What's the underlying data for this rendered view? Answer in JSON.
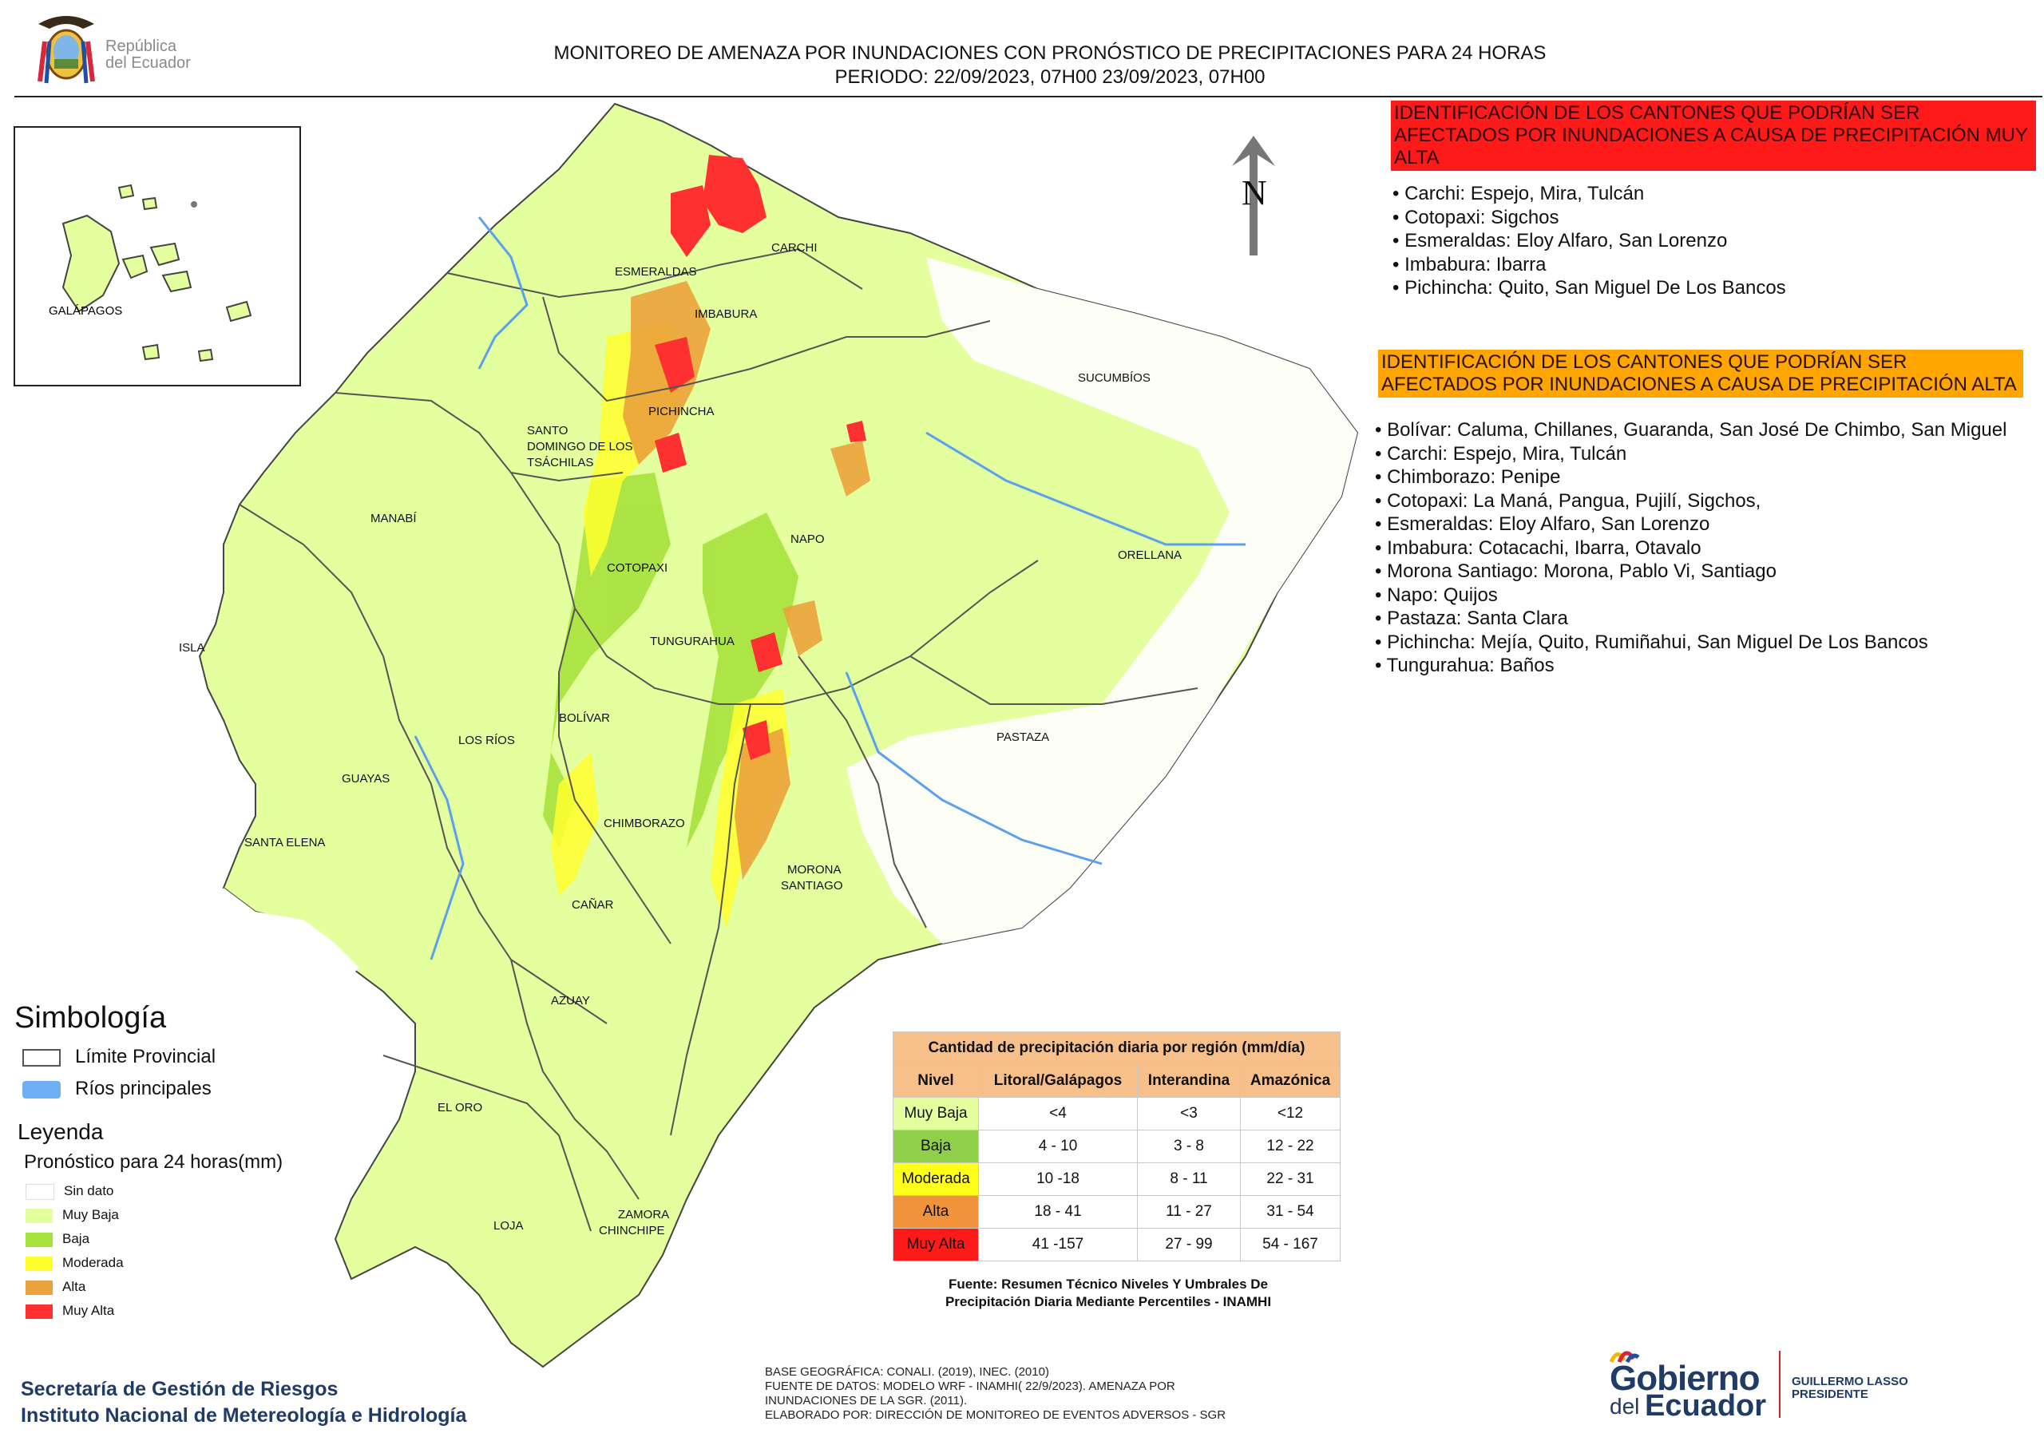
{
  "header": {
    "logo_line1": "República",
    "logo_line2": "del Ecuador",
    "title_line1": "MONITOREO DE AMENAZA POR INUNDACIONES  CON PRONÓSTICO DE  PRECIPITACIONES PARA 24 HORAS",
    "title_line2": "PERIODO: 22/09/2023, 07H00 23/09/2023, 07H00"
  },
  "north_label": "N",
  "map_labels": {
    "galapagos": "GALÁPAGOS",
    "esmeraldas": "ESMERALDAS",
    "carchi": "CARCHI",
    "imbabura": "IMBABURA",
    "sucumbios": "SUCUMBÍOS",
    "pichincha": "PICHINCHA",
    "santo1": "SANTO",
    "santo2": "DOMINGO DE LOS",
    "santo3": "TSÁCHILAS",
    "manabi": "MANABÍ",
    "napo": "NAPO",
    "orellana": "ORELLANA",
    "cotopaxi": "COTOPAXI",
    "tungurahua": "TUNGURAHUA",
    "isla": "ISLA",
    "bolivar": "BOLÍVAR",
    "pastaza": "PASTAZA",
    "losrios": "LOS RÍOS",
    "guayas": "GUAYAS",
    "chimborazo": "CHIMBORAZO",
    "santaelena": "SANTA ELENA",
    "morona1": "MORONA",
    "morona2": "SANTIAGO",
    "canar": "CAÑAR",
    "azuay": "AZUAY",
    "eloro": "EL ORO",
    "loja": "LOJA",
    "zamora1": "ZAMORA",
    "zamora2": "CHINCHIPE"
  },
  "muy_alta": {
    "header": "IDENTIFICACIÓN DE LOS CANTONES QUE PODRÍAN SER AFECTADOS POR INUNDACIONES  A CAUSA DE PRECIPITACIÓN MUY ALTA",
    "items": [
      "• Carchi: Espejo, Mira, Tulcán",
      "• Cotopaxi: Sigchos",
      "• Esmeraldas: Eloy Alfaro, San Lorenzo",
      "• Imbabura: Ibarra",
      "• Pichincha: Quito, San Miguel De Los Bancos"
    ]
  },
  "alta": {
    "header": "IDENTIFICACIÓN DE LOS CANTONES QUE  PODRÍAN SER AFECTADOS POR INUNDACIONES  A CAUSA DE PRECIPITACIÓN ALTA",
    "items": [
      "• Bolívar: Caluma, Chillanes, Guaranda, San José De Chimbo, San Miguel",
      "• Carchi: Espejo, Mira, Tulcán",
      "• Chimborazo: Penipe",
      "• Cotopaxi: La Maná, Pangua, Pujilí, Sigchos,",
      "• Esmeraldas: Eloy Alfaro, San Lorenzo",
      "• Imbabura: Cotacachi, Ibarra, Otavalo",
      "• Morona Santiago: Morona, Pablo Vi, Santiago",
      "• Napo: Quijos",
      "• Pastaza: Santa Clara",
      "• Pichincha: Mejía, Quito, Rumiñahui, San Miguel De Los Bancos",
      "• Tungurahua: Baños"
    ]
  },
  "simbologia": {
    "title": "Simbología",
    "limite": "Límite Provincial",
    "rios": "Ríos principales"
  },
  "leyenda": {
    "title": "Leyenda",
    "subtitle": "Pronóstico para 24 horas(mm)",
    "items": [
      {
        "label": "Sin dato",
        "color": "#ffffff"
      },
      {
        "label": "Muy Baja",
        "color": "#e4ff9e"
      },
      {
        "label": "Baja",
        "color": "#a6e23c"
      },
      {
        "label": "Moderada",
        "color": "#ffff2e"
      },
      {
        "label": "Alta",
        "color": "#eba23b"
      },
      {
        "label": "Muy Alta",
        "color": "#ff3030"
      }
    ]
  },
  "precip_table": {
    "caption": "Cantidad de precipitación diaria por región (mm/día)",
    "headers": [
      "Nivel",
      "Litoral/Galápagos",
      "Interandina",
      "Amazónica"
    ],
    "rows": [
      {
        "nivel": "Muy Baja",
        "color": "#e4ff9e",
        "litoral": "<4",
        "interandina": "<3",
        "amazonica": "<12"
      },
      {
        "nivel": "Baja",
        "color": "#8fcf49",
        "litoral": "4 - 10",
        "interandina": "3 - 8",
        "amazonica": "12 - 22"
      },
      {
        "nivel": "Moderada",
        "color": "#ffff1a",
        "litoral": "10 -18",
        "interandina": "8 - 11",
        "amazonica": "22 - 31"
      },
      {
        "nivel": "Alta",
        "color": "#f0933a",
        "litoral": "18 - 41",
        "interandina": "11 - 27",
        "amazonica": "31 - 54"
      },
      {
        "nivel": "Muy Alta",
        "color": "#ff1a1a",
        "litoral": "41 -157",
        "interandina": "27 - 99",
        "amazonica": "54 - 167"
      }
    ],
    "fuente_line1": "Fuente: Resumen Técnico Niveles Y Umbrales De",
    "fuente_line2": "Precipitación Diaria Mediante Percentiles - INAMHI"
  },
  "base": {
    "line1": "BASE GEOGRÁFICA: CONALI. (2019), INEC. (2010)",
    "line2": "FUENTE DE DATOS: MODELO WRF - INAMHI( 22/9/2023).  AMENAZA POR",
    "line3": "INUNDACIONES DE LA SGR. (2011).",
    "line4": "ELABORADO POR: DIRECCIÓN DE MONITOREO DE EVENTOS ADVERSOS - SGR"
  },
  "footer": {
    "sgr": "Secretaría de Gestión de Riesgos",
    "inamhi": "Instituto Nacional de Metereología e Hidrología",
    "gob1": "Gobierno",
    "gob2": "del",
    "gob3": "Ecuador",
    "pres1": "GUILLERMO LASSO",
    "pres2": "PRESIDENTE"
  }
}
